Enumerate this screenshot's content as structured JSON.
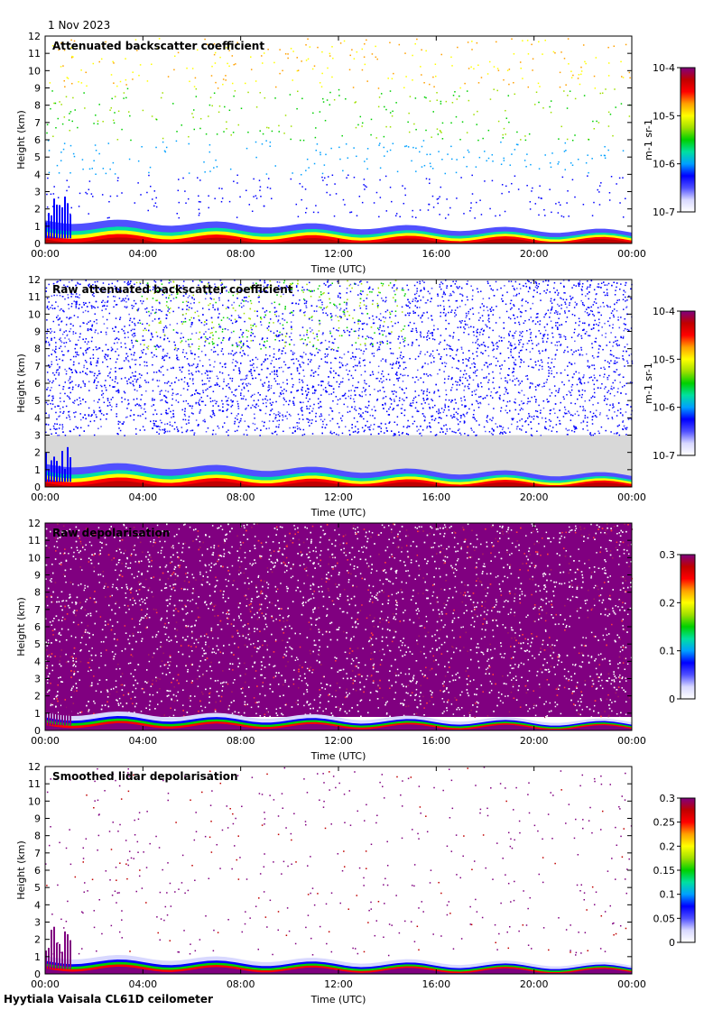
{
  "date": "1 Nov 2023",
  "footer": "Hyytiala Vaisala CL61D ceilometer",
  "chart_data": [
    {
      "type": "heatmap",
      "title": "Attenuated backscatter coefficient",
      "xlabel": "Time (UTC)",
      "ylabel": "Height (km)",
      "xticks": [
        "00:00",
        "04:00",
        "08:00",
        "12:00",
        "16:00",
        "20:00",
        "00:00"
      ],
      "yticks": [
        0,
        1,
        2,
        3,
        4,
        5,
        6,
        7,
        8,
        9,
        10,
        11,
        12
      ],
      "ylim": [
        0,
        12
      ],
      "scale": "log",
      "colorbar_ticks": [
        "10-7",
        "10-6",
        "10-5",
        "10-4"
      ],
      "colorbar_unit": "m-1 sr-1",
      "noise": "sparse"
    },
    {
      "type": "heatmap",
      "title": "Raw attenuated backscatter coefficient",
      "xlabel": "Time (UTC)",
      "ylabel": "Height (km)",
      "xticks": [
        "00:00",
        "04:00",
        "08:00",
        "12:00",
        "16:00",
        "20:00",
        "00:00"
      ],
      "yticks": [
        0,
        1,
        2,
        3,
        4,
        5,
        6,
        7,
        8,
        9,
        10,
        11,
        12
      ],
      "ylim": [
        0,
        12
      ],
      "scale": "log",
      "colorbar_ticks": [
        "10-7",
        "10-6",
        "10-5",
        "10-4"
      ],
      "colorbar_unit": "m-1 sr-1",
      "noise": "dense-blue"
    },
    {
      "type": "heatmap",
      "title": "Raw depolarisation",
      "xlabel": "Time (UTC)",
      "ylabel": "Height (km)",
      "xticks": [
        "00:00",
        "04:00",
        "08:00",
        "12:00",
        "16:00",
        "20:00",
        "00:00"
      ],
      "yticks": [
        0,
        1,
        2,
        3,
        4,
        5,
        6,
        7,
        8,
        9,
        10,
        11,
        12
      ],
      "ylim": [
        0,
        12
      ],
      "scale": "linear",
      "colorbar_ticks": [
        "0",
        "0.1",
        "0.2",
        "0.3"
      ],
      "colorbar_unit": "",
      "noise": "dense-purple"
    },
    {
      "type": "heatmap",
      "title": "Smoothed lidar depolarisation",
      "xlabel": "Time (UTC)",
      "ylabel": "Height (km)",
      "xticks": [
        "00:00",
        "04:00",
        "08:00",
        "12:00",
        "16:00",
        "20:00",
        "00:00"
      ],
      "yticks": [
        0,
        1,
        2,
        3,
        4,
        5,
        6,
        7,
        8,
        9,
        10,
        11,
        12
      ],
      "ylim": [
        0,
        12
      ],
      "scale": "linear",
      "colorbar_ticks": [
        "0",
        "0.05",
        "0.1",
        "0.15",
        "0.2",
        "0.25",
        "0.3"
      ],
      "colorbar_unit": "",
      "noise": "sparse-purple"
    }
  ]
}
